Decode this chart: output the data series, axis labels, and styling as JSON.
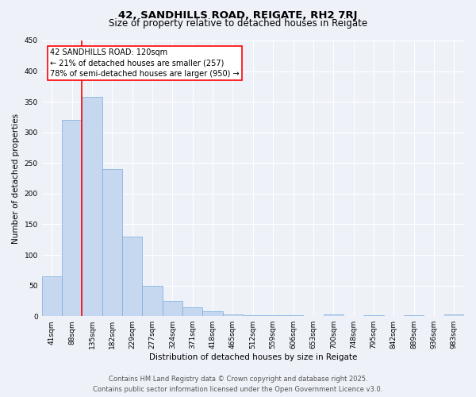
{
  "title_line1": "42, SANDHILLS ROAD, REIGATE, RH2 7RJ",
  "title_line2": "Size of property relative to detached houses in Reigate",
  "xlabel": "Distribution of detached houses by size in Reigate",
  "ylabel": "Number of detached properties",
  "categories": [
    "41sqm",
    "88sqm",
    "135sqm",
    "182sqm",
    "229sqm",
    "277sqm",
    "324sqm",
    "371sqm",
    "418sqm",
    "465sqm",
    "512sqm",
    "559sqm",
    "606sqm",
    "653sqm",
    "700sqm",
    "748sqm",
    "795sqm",
    "842sqm",
    "889sqm",
    "936sqm",
    "983sqm"
  ],
  "values": [
    65,
    320,
    358,
    240,
    130,
    49,
    25,
    14,
    8,
    3,
    2,
    1,
    1,
    0,
    3,
    0,
    1,
    0,
    2,
    0,
    3
  ],
  "bar_color": "#c5d8f0",
  "bar_edge_color": "#7aabdb",
  "vline_x": 1.5,
  "vline_color": "red",
  "vline_linewidth": 1.2,
  "annotation_box_text": "42 SANDHILLS ROAD: 120sqm\n← 21% of detached houses are smaller (257)\n78% of semi-detached houses are larger (950) →",
  "ylim": [
    0,
    450
  ],
  "yticks": [
    0,
    50,
    100,
    150,
    200,
    250,
    300,
    350,
    400,
    450
  ],
  "footer_line1": "Contains HM Land Registry data © Crown copyright and database right 2025.",
  "footer_line2": "Contains public sector information licensed under the Open Government Licence v3.0.",
  "bg_color": "#eef2f8",
  "plot_bg_color": "#eef2f8",
  "grid_color": "white",
  "title_fontsize": 9.5,
  "subtitle_fontsize": 8.5,
  "axis_label_fontsize": 7.5,
  "tick_fontsize": 6.5,
  "annotation_fontsize": 7.0,
  "footer_fontsize": 6.0
}
